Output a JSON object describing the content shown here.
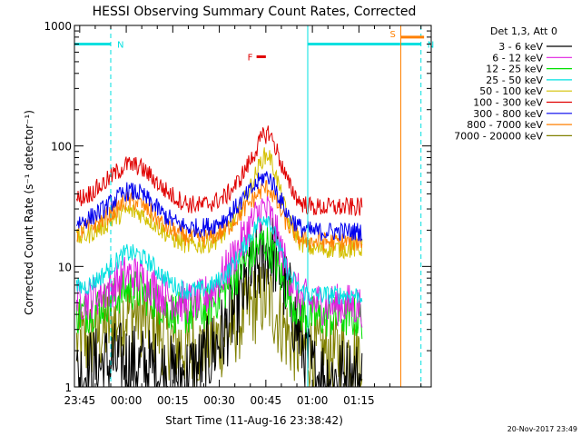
{
  "chart_data": {
    "type": "line",
    "title": "HESSI Observing Summary Count Rates, Corrected",
    "xlabel": "Start Time (11-Aug-16 23:38:42)",
    "ylabel": "Corrected Count Rate (s⁻¹ detector⁻¹)",
    "yscale": "log",
    "ylim": [
      1,
      1000
    ],
    "xlim_minutes": [
      -16.7,
      98.3
    ],
    "x_units": "minutes after 00:00 UT, 12-Aug-2016",
    "x_tick_labels": [
      "23:45",
      "00:00",
      "00:15",
      "00:30",
      "00:45",
      "01:00",
      "01:15"
    ],
    "x_tick_values": [
      -15,
      0,
      15,
      30,
      45,
      60,
      75
    ],
    "y_tick_labels": [
      "1",
      "10",
      "100",
      "1000"
    ],
    "y_tick_values": [
      1,
      10,
      100,
      1000
    ],
    "legend_placement": "right, outside plot",
    "legend_header": "Det 1,3, Att 0",
    "x": [
      -16,
      -12,
      -8,
      -4,
      0,
      4,
      8,
      12,
      16,
      20,
      24,
      28,
      32,
      36,
      40,
      44,
      46,
      48,
      52,
      56,
      60,
      64,
      68,
      72,
      76
    ],
    "series": [
      {
        "name": "3 - 6 keV",
        "color": "#000000",
        "values": [
          1.2,
          1.4,
          1.5,
          1.6,
          1.6,
          1.5,
          1.4,
          1.3,
          1.2,
          1.3,
          1.5,
          2.0,
          3.0,
          5.0,
          8.0,
          12.0,
          14.0,
          12.0,
          6.0,
          2.5,
          1.3,
          1.2,
          1.2,
          1.2,
          1.1
        ]
      },
      {
        "name": "6 - 12 keV",
        "color": "#e020e0",
        "values": [
          5.2,
          5.4,
          6.0,
          7.0,
          8.5,
          8.3,
          7.0,
          5.8,
          5.2,
          5.0,
          5.2,
          6.5,
          9.0,
          14.0,
          22.0,
          30.0,
          28.0,
          20.0,
          9.0,
          5.5,
          5.0,
          4.9,
          4.8,
          4.8,
          4.7
        ]
      },
      {
        "name": "12 - 25 keV",
        "color": "#00e000",
        "values": [
          4.0,
          4.2,
          4.8,
          5.5,
          6.5,
          6.3,
          5.5,
          4.6,
          4.1,
          4.0,
          4.2,
          5.0,
          6.5,
          9.0,
          12.0,
          16.0,
          15.0,
          11.0,
          6.0,
          4.2,
          3.8,
          3.8,
          3.8,
          3.8,
          3.7
        ]
      },
      {
        "name": "25 - 50 keV",
        "color": "#00e0e0",
        "values": [
          6.6,
          7.0,
          8.3,
          10.5,
          13.0,
          12.5,
          10.5,
          8.2,
          6.8,
          6.3,
          6.4,
          7.0,
          8.5,
          12.0,
          18.0,
          26.0,
          25.0,
          18.0,
          9.0,
          6.3,
          5.8,
          5.8,
          5.8,
          5.8,
          5.8
        ]
      },
      {
        "name": "50 - 100 keV",
        "color": "#d4c000",
        "values": [
          17.0,
          18.5,
          21.0,
          25.0,
          29.0,
          28.0,
          24.0,
          19.5,
          16.5,
          15.0,
          15.0,
          16.0,
          19.0,
          27.0,
          45.0,
          80.0,
          85.0,
          60.0,
          25.0,
          16.0,
          14.0,
          14.0,
          14.0,
          14.0,
          14.0
        ]
      },
      {
        "name": "100 - 300 keV",
        "color": "#e00000",
        "values": [
          36.0,
          40.0,
          47.0,
          58.0,
          70.0,
          68.0,
          56.0,
          44.0,
          37.0,
          33.0,
          32.0,
          34.0,
          38.0,
          50.0,
          75.0,
          120.0,
          130.0,
          100.0,
          50.0,
          34.0,
          31.0,
          31.0,
          31.0,
          31.0,
          31.0
        ]
      },
      {
        "name": "300 - 800 keV",
        "color": "#0000ee",
        "values": [
          23.0,
          25.0,
          29.0,
          35.0,
          42.0,
          41.0,
          34.0,
          27.0,
          23.0,
          21.0,
          21.0,
          22.0,
          25.0,
          32.0,
          42.0,
          55.0,
          56.0,
          45.0,
          27.0,
          21.0,
          19.5,
          19.5,
          19.5,
          19.5,
          19.5
        ]
      },
      {
        "name": "800 - 7000 keV",
        "color": "#ff8000",
        "values": [
          19.0,
          21.0,
          24.0,
          29.0,
          35.0,
          34.0,
          28.0,
          22.0,
          19.0,
          17.5,
          17.0,
          18.0,
          20.0,
          26.0,
          34.0,
          44.0,
          45.0,
          36.0,
          22.0,
          17.0,
          16.0,
          16.0,
          16.0,
          16.0,
          16.0
        ]
      },
      {
        "name": "7000 - 20000 keV",
        "color": "#808000",
        "values": [
          2.2,
          2.4,
          2.8,
          3.4,
          4.2,
          4.0,
          3.3,
          2.7,
          2.3,
          2.1,
          2.1,
          2.3,
          2.7,
          3.5,
          4.5,
          5.5,
          5.3,
          4.3,
          2.7,
          2.1,
          1.9,
          1.9,
          1.9,
          1.9,
          1.9
        ]
      }
    ],
    "annotations": [
      {
        "label": "N",
        "color": "#00e0e0",
        "x_start": -16.7,
        "x_end": -5,
        "y_value": 700,
        "dashed_line_x": -5
      },
      {
        "label": "N",
        "color": "#00e0e0",
        "x_start": 58.5,
        "x_end": 95,
        "y_value": 700,
        "dashed_line_x": 95
      },
      {
        "label": "S",
        "color": "#ff8000",
        "x_start": 88.5,
        "x_end": 96,
        "y_value": 800,
        "solid_line_x": 88.5
      },
      {
        "label": "F",
        "color": "#e00000",
        "x_start": 42,
        "x_end": 45,
        "y_value": 550
      },
      {
        "label": "",
        "color": "#00e0e0",
        "solid_line_x": 58.5
      }
    ],
    "grid": false,
    "footer": "20-Nov-2017 23:49"
  }
}
